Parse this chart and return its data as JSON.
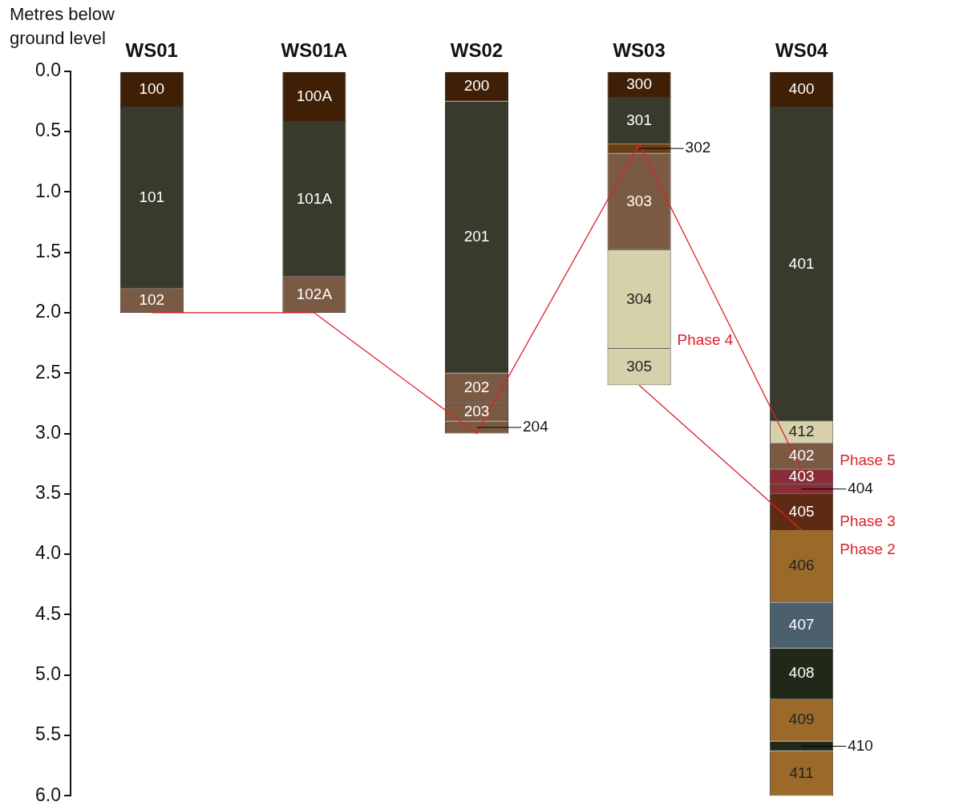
{
  "chart_data": {
    "type": "bar",
    "stacked": true,
    "ylabel": "Metres below ground level",
    "categories": [
      "WS01",
      "WS01A",
      "WS02",
      "WS03",
      "WS04"
    ],
    "ylim": [
      6,
      0
    ],
    "yticks": [
      {
        "value": 0,
        "label": "0.0"
      },
      {
        "value": 0.5,
        "label": "0.5"
      },
      {
        "value": 1,
        "label": "1.0"
      },
      {
        "value": 1.5,
        "label": "1.5"
      },
      {
        "value": 2,
        "label": "2.0"
      },
      {
        "value": 2.5,
        "label": "2.5"
      },
      {
        "value": 3,
        "label": "3.0"
      },
      {
        "value": 3.5,
        "label": "3.5"
      },
      {
        "value": 4,
        "label": "4.0"
      },
      {
        "value": 4.5,
        "label": "4.5"
      },
      {
        "value": 5,
        "label": "5.0"
      },
      {
        "value": 5.5,
        "label": "5.5"
      },
      {
        "value": 6,
        "label": "6.0"
      }
    ],
    "grid": false,
    "legend": false,
    "series": [
      {
        "name": "100",
        "color": "#3f1f05",
        "values": [
          0.3,
          null,
          null,
          null,
          null
        ]
      },
      {
        "name": "101",
        "color": "#393a2b",
        "values": [
          1.5,
          null,
          null,
          null,
          null
        ]
      },
      {
        "name": "102",
        "color": "#7a5a43",
        "values": [
          0.2,
          null,
          null,
          null,
          null
        ]
      },
      {
        "name": "100A",
        "color": "#3f1f05",
        "values": [
          null,
          0.42,
          null,
          null,
          null
        ]
      },
      {
        "name": "101A",
        "color": "#393a2b",
        "values": [
          null,
          1.28,
          null,
          null,
          null
        ]
      },
      {
        "name": "102A",
        "color": "#7a5a43",
        "values": [
          null,
          0.3,
          null,
          null,
          null
        ]
      },
      {
        "name": "200",
        "color": "#3f1f05",
        "values": [
          null,
          null,
          0.25,
          null,
          null
        ]
      },
      {
        "name": "201",
        "color": "#393a2b",
        "values": [
          null,
          null,
          2.25,
          null,
          null
        ]
      },
      {
        "name": "202",
        "color": "#7a5a43",
        "values": [
          null,
          null,
          0.25,
          null,
          null
        ]
      },
      {
        "name": "203",
        "color": "#7a5a43",
        "values": [
          null,
          null,
          0.15,
          null,
          null
        ]
      },
      {
        "name": "204",
        "color": "#7a5a43",
        "values": [
          null,
          null,
          0.1,
          null,
          null
        ]
      },
      {
        "name": "300",
        "color": "#3f1f05",
        "values": [
          null,
          null,
          null,
          0.22,
          null
        ]
      },
      {
        "name": "301",
        "color": "#393a2b",
        "values": [
          null,
          null,
          null,
          0.38,
          null
        ]
      },
      {
        "name": "302",
        "color": "#6b3e14",
        "values": [
          null,
          null,
          null,
          0.08,
          null
        ]
      },
      {
        "name": "303",
        "color": "#7a5a43",
        "values": [
          null,
          null,
          null,
          0.8,
          null
        ]
      },
      {
        "name": "304",
        "color": "#d6d1aa",
        "values": [
          null,
          null,
          null,
          0.82,
          null
        ]
      },
      {
        "name": "305",
        "color": "#d6d1aa",
        "values": [
          null,
          null,
          null,
          0.3,
          null
        ]
      },
      {
        "name": "400",
        "color": "#3f1f05",
        "values": [
          null,
          null,
          null,
          null,
          0.3
        ]
      },
      {
        "name": "401",
        "color": "#393a2b",
        "values": [
          null,
          null,
          null,
          null,
          2.6
        ]
      },
      {
        "name": "412",
        "color": "#d6d1aa",
        "values": [
          null,
          null,
          null,
          null,
          0.18
        ]
      },
      {
        "name": "402",
        "color": "#7a5a43",
        "values": [
          null,
          null,
          null,
          null,
          0.22
        ]
      },
      {
        "name": "403",
        "color": "#8a2d36",
        "values": [
          null,
          null,
          null,
          null,
          0.12
        ]
      },
      {
        "name": "404",
        "color": "#8a2d36",
        "values": [
          null,
          null,
          null,
          null,
          0.08
        ]
      },
      {
        "name": "405",
        "color": "#5f2a14",
        "values": [
          null,
          null,
          null,
          null,
          0.3
        ]
      },
      {
        "name": "406",
        "color": "#9b6a2a",
        "values": [
          null,
          null,
          null,
          null,
          0.6
        ]
      },
      {
        "name": "407",
        "color": "#4b5f6d",
        "values": [
          null,
          null,
          null,
          null,
          0.38
        ]
      },
      {
        "name": "408",
        "color": "#212818",
        "values": [
          null,
          null,
          null,
          null,
          0.42
        ]
      },
      {
        "name": "409",
        "color": "#9b6a2a",
        "values": [
          null,
          null,
          null,
          null,
          0.35
        ]
      },
      {
        "name": "410",
        "color": "#212818",
        "values": [
          null,
          null,
          null,
          null,
          0.08
        ]
      },
      {
        "name": "411",
        "color": "#9b6a2a",
        "values": [
          null,
          null,
          null,
          null,
          0.37
        ]
      },
      {
        "type": "line",
        "color": "#e0202a",
        "values": [
          2,
          2,
          3,
          0.6,
          3.3
        ]
      },
      {
        "type": "line",
        "color": "#e0202a",
        "values": [
          null,
          null,
          null,
          2.6,
          3.8
        ]
      }
    ],
    "annotations": [
      {
        "text": "Phase 4",
        "x": "WS03",
        "y": 2.3
      },
      {
        "text": "Phase 5",
        "x": "WS04",
        "y": 3.3
      },
      {
        "text": "Phase 3",
        "x": "WS04",
        "y": 3.8
      },
      "Phase 2"
    ]
  }
}
